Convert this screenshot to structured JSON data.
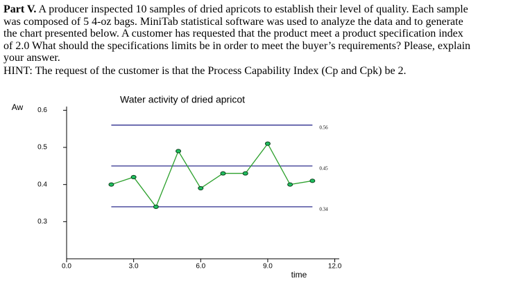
{
  "document": {
    "part_label": "Part V.",
    "lines": [
      "A producer inspected 10 samples of dried apricots to establish their level of quality. Each sample",
      "was composed of 5 4-oz bags. MiniTab statistical software was used to analyze the data and to generate",
      "the chart presented below. A customer has requested that the product meet a product specification index",
      "of 2.0 What should the specifications limits be in order to meet the buyer’s requirements? Please, explain",
      "your answer.",
      "HINT: The request of the customer is that the Process Capability Index (Cp and Cpk) be 2."
    ]
  },
  "chart_data": {
    "type": "line",
    "title": "Water activity of dried apricot",
    "y_label": "Aw",
    "x_label": "time",
    "x": [
      2,
      3,
      4,
      5,
      6,
      7,
      8,
      9,
      10,
      11
    ],
    "series": [
      {
        "color": "#2ca02c",
        "marker_color": "#1fbf5f",
        "values": [
          0.4,
          0.42,
          0.34,
          0.49,
          0.39,
          0.43,
          0.43,
          0.51,
          0.4,
          0.41
        ]
      }
    ],
    "reference_lines": [
      {
        "value": 0.56,
        "color": "#2b2b8c"
      },
      {
        "value": 0.45,
        "color": "#2b2b8c"
      },
      {
        "value": 0.34,
        "color": "#2b2b8c"
      }
    ],
    "xlim": [
      0,
      12.2
    ],
    "ylim": [
      0.2,
      0.61
    ],
    "xticks": [
      {
        "value": 0,
        "label": "0.0"
      },
      {
        "value": 3,
        "label": "3.0"
      },
      {
        "value": 6,
        "label": "6.0"
      },
      {
        "value": 9,
        "label": "9.0"
      },
      {
        "value": 12,
        "label": "12.0"
      }
    ],
    "yticks": [
      0.3,
      0.4,
      0.5,
      0.6
    ]
  }
}
